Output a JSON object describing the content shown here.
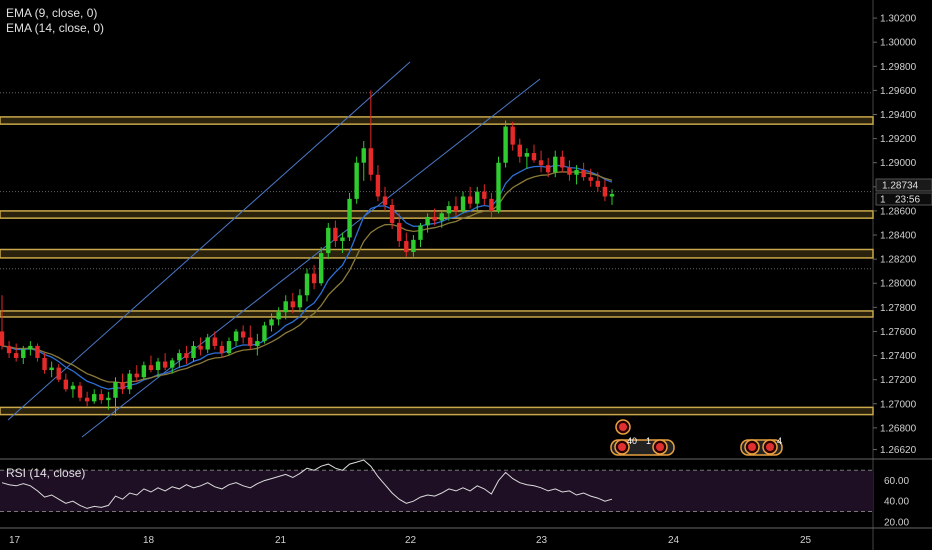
{
  "indicators": {
    "ema9": "EMA (9, close, 0)",
    "ema14": "EMA (14, close, 0)",
    "rsi": "RSI (14, close)"
  },
  "price_tag": {
    "price": "1.28734",
    "prefix": "1",
    "countdown": "23:56"
  },
  "event_badges": [
    "40",
    "1",
    "4"
  ],
  "colors": {
    "bull": "#2ecc2e",
    "bear": "#e62a2a",
    "zone": "#c8a84a",
    "trend": "#4a78c8",
    "ema9": "#2d6fd6",
    "ema14": "#8a7a3a",
    "rsi": "#dcdcdc",
    "rsi_bg": "#1e0f24"
  },
  "chart_data": {
    "type": "candlestick",
    "price_axis": {
      "min": 1.2655,
      "max": 1.3035,
      "ticks": [
        "1.30200",
        "1.30000",
        "1.29800",
        "1.29600",
        "1.29400",
        "1.29200",
        "1.29000",
        "1.28800",
        "1.28600",
        "1.28400",
        "1.28200",
        "1.28000",
        "1.27800",
        "1.27600",
        "1.27400",
        "1.27200",
        "1.27000",
        "1.26800",
        "1.26620"
      ]
    },
    "time_axis": {
      "labels": [
        "17",
        "18",
        "21",
        "22",
        "23",
        "24",
        "25"
      ]
    },
    "rsi_axis": {
      "ticks": [
        "60.00",
        "40.00",
        "20.00"
      ],
      "upper": 70,
      "lower": 30
    },
    "zones": [
      [
        1.2932,
        1.2938
      ],
      [
        1.2854,
        1.286
      ],
      [
        1.2821,
        1.2828
      ],
      [
        1.2772,
        1.2777
      ],
      [
        1.2691,
        1.2697
      ]
    ],
    "dotted_levels": [
      1.2958,
      1.2876,
      1.2812
    ],
    "candles": [
      [
        1.276,
        1.279,
        1.2745,
        1.2748
      ],
      [
        1.2748,
        1.2752,
        1.2738,
        1.2742
      ],
      [
        1.2742,
        1.275,
        1.2735,
        1.2738
      ],
      [
        1.2738,
        1.2748,
        1.2733,
        1.2745
      ],
      [
        1.2745,
        1.2752,
        1.274,
        1.2748
      ],
      [
        1.2748,
        1.275,
        1.2735,
        1.2738
      ],
      [
        1.2738,
        1.2742,
        1.2725,
        1.2728
      ],
      [
        1.2728,
        1.2735,
        1.2722,
        1.273
      ],
      [
        1.273,
        1.2733,
        1.2718,
        1.272
      ],
      [
        1.272,
        1.2725,
        1.271,
        1.2712
      ],
      [
        1.2712,
        1.2718,
        1.2705,
        1.2715
      ],
      [
        1.2715,
        1.2718,
        1.2702,
        1.2705
      ],
      [
        1.2705,
        1.271,
        1.2698,
        1.2702
      ],
      [
        1.2702,
        1.2712,
        1.27,
        1.2708
      ],
      [
        1.2708,
        1.2712,
        1.27,
        1.2703
      ],
      [
        1.2703,
        1.271,
        1.2695,
        1.2705
      ],
      [
        1.2705,
        1.2722,
        1.269,
        1.2718
      ],
      [
        1.2718,
        1.2725,
        1.2708,
        1.2712
      ],
      [
        1.2712,
        1.2728,
        1.2708,
        1.2725
      ],
      [
        1.2725,
        1.2732,
        1.2718,
        1.2722
      ],
      [
        1.2722,
        1.2735,
        1.272,
        1.2732
      ],
      [
        1.2732,
        1.274,
        1.2726,
        1.2728
      ],
      [
        1.2728,
        1.2738,
        1.2722,
        1.2735
      ],
      [
        1.2735,
        1.2742,
        1.2728,
        1.273
      ],
      [
        1.273,
        1.2738,
        1.2725,
        1.2736
      ],
      [
        1.2736,
        1.2745,
        1.273,
        1.2742
      ],
      [
        1.2742,
        1.2748,
        1.2733,
        1.2738
      ],
      [
        1.2738,
        1.2752,
        1.2735,
        1.2748
      ],
      [
        1.2748,
        1.2755,
        1.274,
        1.2745
      ],
      [
        1.2745,
        1.2758,
        1.2742,
        1.2755
      ],
      [
        1.2755,
        1.276,
        1.2745,
        1.2748
      ],
      [
        1.2748,
        1.2752,
        1.2738,
        1.2742
      ],
      [
        1.2742,
        1.2755,
        1.274,
        1.2752
      ],
      [
        1.2752,
        1.2762,
        1.2748,
        1.276
      ],
      [
        1.276,
        1.2765,
        1.275,
        1.2755
      ],
      [
        1.2755,
        1.2765,
        1.2745,
        1.2748
      ],
      [
        1.2748,
        1.2758,
        1.274,
        1.2752
      ],
      [
        1.2752,
        1.2768,
        1.275,
        1.2765
      ],
      [
        1.2765,
        1.2775,
        1.276,
        1.277
      ],
      [
        1.277,
        1.278,
        1.2765,
        1.2776
      ],
      [
        1.2776,
        1.279,
        1.277,
        1.2785
      ],
      [
        1.2785,
        1.2792,
        1.2775,
        1.278
      ],
      [
        1.278,
        1.2795,
        1.2776,
        1.279
      ],
      [
        1.279,
        1.2812,
        1.2785,
        1.2808
      ],
      [
        1.2808,
        1.2815,
        1.2795,
        1.28
      ],
      [
        1.28,
        1.283,
        1.2798,
        1.2825
      ],
      [
        1.2825,
        1.285,
        1.282,
        1.2846
      ],
      [
        1.2846,
        1.2852,
        1.283,
        1.2835
      ],
      [
        1.2835,
        1.2842,
        1.2825,
        1.2838
      ],
      [
        1.2838,
        1.2875,
        1.2835,
        1.287
      ],
      [
        1.287,
        1.2905,
        1.2866,
        1.29
      ],
      [
        1.29,
        1.2918,
        1.2885,
        1.2912
      ],
      [
        1.2912,
        1.296,
        1.2885,
        1.289
      ],
      [
        1.289,
        1.2898,
        1.2868,
        1.2872
      ],
      [
        1.2872,
        1.288,
        1.286,
        1.2865
      ],
      [
        1.2865,
        1.287,
        1.2845,
        1.285
      ],
      [
        1.285,
        1.2858,
        1.283,
        1.2835
      ],
      [
        1.2835,
        1.2842,
        1.2822,
        1.2826
      ],
      [
        1.2826,
        1.284,
        1.2822,
        1.2836
      ],
      [
        1.2836,
        1.285,
        1.283,
        1.2848
      ],
      [
        1.2848,
        1.2858,
        1.2842,
        1.2855
      ],
      [
        1.2855,
        1.2862,
        1.2848,
        1.2852
      ],
      [
        1.2852,
        1.286,
        1.2846,
        1.2858
      ],
      [
        1.2858,
        1.2868,
        1.2852,
        1.2864
      ],
      [
        1.2864,
        1.2872,
        1.2856,
        1.286
      ],
      [
        1.286,
        1.2876,
        1.2858,
        1.2872
      ],
      [
        1.2872,
        1.288,
        1.2862,
        1.2866
      ],
      [
        1.2866,
        1.288,
        1.286,
        1.2876
      ],
      [
        1.2876,
        1.2882,
        1.2865,
        1.287
      ],
      [
        1.287,
        1.2875,
        1.2855,
        1.286
      ],
      [
        1.286,
        1.2905,
        1.2858,
        1.29
      ],
      [
        1.29,
        1.2935,
        1.2896,
        1.293
      ],
      [
        1.293,
        1.2934,
        1.291,
        1.2915
      ],
      [
        1.2915,
        1.292,
        1.29,
        1.2905
      ],
      [
        1.2905,
        1.2912,
        1.2895,
        1.2908
      ],
      [
        1.2908,
        1.2915,
        1.29,
        1.2902
      ],
      [
        1.2902,
        1.291,
        1.2892,
        1.2898
      ],
      [
        1.2898,
        1.2904,
        1.2888,
        1.2892
      ],
      [
        1.2892,
        1.291,
        1.2888,
        1.2905
      ],
      [
        1.2905,
        1.291,
        1.2892,
        1.2896
      ],
      [
        1.2896,
        1.2902,
        1.2885,
        1.289
      ],
      [
        1.289,
        1.2898,
        1.2882,
        1.2894
      ],
      [
        1.2894,
        1.29,
        1.2885,
        1.2888
      ],
      [
        1.2888,
        1.2895,
        1.288,
        1.2885
      ],
      [
        1.2885,
        1.2892,
        1.2876,
        1.288
      ],
      [
        1.288,
        1.2886,
        1.2868,
        1.2872
      ],
      [
        1.2872,
        1.2878,
        1.2865,
        1.2874
      ]
    ],
    "rsi_values": [
      58,
      56,
      55,
      57,
      55,
      50,
      44,
      46,
      42,
      38,
      40,
      36,
      33,
      35,
      34,
      36,
      45,
      42,
      48,
      46,
      52,
      49,
      53,
      50,
      54,
      52,
      56,
      53,
      55,
      58,
      54,
      52,
      56,
      58,
      55,
      53,
      57,
      60,
      62,
      64,
      66,
      63,
      67,
      72,
      70,
      74,
      76,
      72,
      70,
      76,
      78,
      80,
      74,
      64,
      56,
      48,
      42,
      38,
      40,
      44,
      46,
      45,
      48,
      52,
      50,
      53,
      50,
      55,
      52,
      47,
      60,
      68,
      62,
      58,
      56,
      55,
      53,
      50,
      52,
      49,
      50,
      46,
      48,
      45,
      43,
      40,
      42
    ]
  }
}
